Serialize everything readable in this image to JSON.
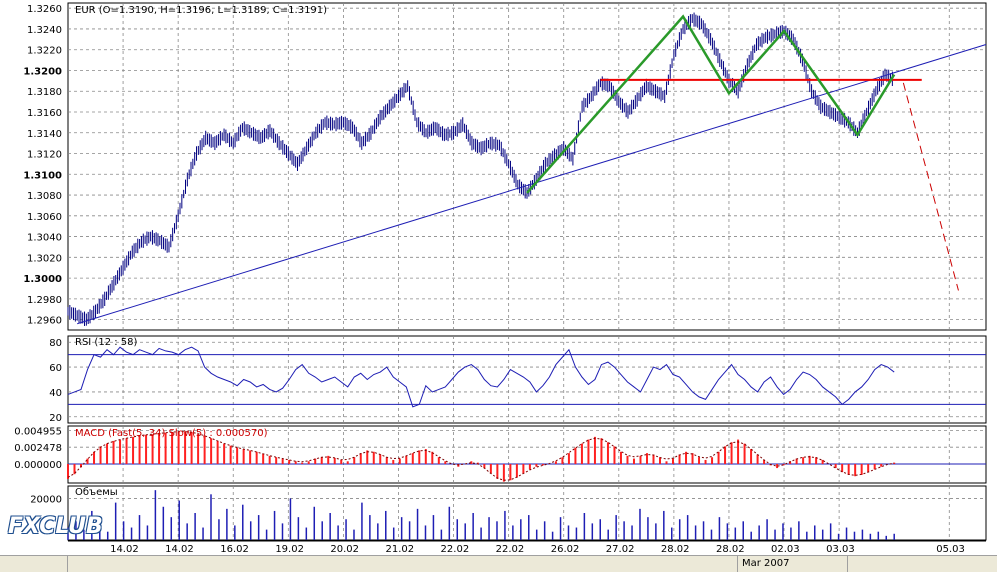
{
  "chart_data": {
    "type": "candlestick",
    "title": "EUR (O=1.3190, H=1.3196, L=1.3189, C=1.3191)",
    "price_axis": {
      "ticks": [
        "1.3260",
        "1.3240",
        "1.3220",
        "1.3200",
        "1.3180",
        "1.3160",
        "1.3140",
        "1.3120",
        "1.3100",
        "1.3080",
        "1.3060",
        "1.3040",
        "1.3020",
        "1.3000",
        "1.2980",
        "1.2960"
      ],
      "bold_ticks": [
        "1.3200",
        "1.3100",
        "1.3000"
      ],
      "ylim": [
        1.295,
        1.3265
      ]
    },
    "x_axis": {
      "ticks": [
        "14.02",
        "14.02",
        "16.02",
        "19.02",
        "20.02",
        "21.02",
        "22.02",
        "22.02",
        "26.02",
        "27.02",
        "28.02",
        "28.02",
        "02.03",
        "03.03",
        "05.03"
      ],
      "range": [
        0,
        100
      ]
    },
    "price_path": [
      [
        0,
        1.2968
      ],
      [
        1,
        1.2964
      ],
      [
        2,
        1.296
      ],
      [
        3,
        1.2968
      ],
      [
        4,
        1.298
      ],
      [
        5,
        1.2995
      ],
      [
        6,
        1.301
      ],
      [
        7,
        1.3025
      ],
      [
        8,
        1.3035
      ],
      [
        9,
        1.304
      ],
      [
        10,
        1.3036
      ],
      [
        11,
        1.303
      ],
      [
        12,
        1.306
      ],
      [
        13,
        1.3095
      ],
      [
        14,
        1.312
      ],
      [
        15,
        1.3135
      ],
      [
        16,
        1.313
      ],
      [
        17,
        1.3138
      ],
      [
        18,
        1.313
      ],
      [
        19,
        1.3145
      ],
      [
        20,
        1.314
      ],
      [
        21,
        1.3135
      ],
      [
        22,
        1.3142
      ],
      [
        23,
        1.313
      ],
      [
        24,
        1.312
      ],
      [
        25,
        1.311
      ],
      [
        26,
        1.3125
      ],
      [
        27,
        1.314
      ],
      [
        28,
        1.315
      ],
      [
        29,
        1.3148
      ],
      [
        30,
        1.315
      ],
      [
        31,
        1.3145
      ],
      [
        32,
        1.313
      ],
      [
        33,
        1.314
      ],
      [
        34,
        1.3155
      ],
      [
        35,
        1.3165
      ],
      [
        36,
        1.3175
      ],
      [
        37,
        1.3185
      ],
      [
        38,
        1.315
      ],
      [
        39,
        1.314
      ],
      [
        40,
        1.3145
      ],
      [
        41,
        1.3138
      ],
      [
        42,
        1.314
      ],
      [
        43,
        1.3148
      ],
      [
        44,
        1.313
      ],
      [
        45,
        1.3125
      ],
      [
        46,
        1.313
      ],
      [
        47,
        1.3128
      ],
      [
        48,
        1.311
      ],
      [
        49,
        1.309
      ],
      [
        50,
        1.3082
      ],
      [
        51,
        1.3095
      ],
      [
        52,
        1.311
      ],
      [
        53,
        1.3118
      ],
      [
        54,
        1.3125
      ],
      [
        55,
        1.3115
      ],
      [
        56,
        1.3165
      ],
      [
        57,
        1.3175
      ],
      [
        58,
        1.3188
      ],
      [
        59,
        1.3185
      ],
      [
        60,
        1.317
      ],
      [
        61,
        1.316
      ],
      [
        62,
        1.3172
      ],
      [
        63,
        1.3185
      ],
      [
        64,
        1.318
      ],
      [
        65,
        1.3175
      ],
      [
        66,
        1.3215
      ],
      [
        67,
        1.324
      ],
      [
        68,
        1.325
      ],
      [
        69,
        1.3245
      ],
      [
        70,
        1.323
      ],
      [
        71,
        1.321
      ],
      [
        72,
        1.319
      ],
      [
        73,
        1.318
      ],
      [
        74,
        1.3205
      ],
      [
        75,
        1.3225
      ],
      [
        76,
        1.3232
      ],
      [
        77,
        1.3235
      ],
      [
        78,
        1.3238
      ],
      [
        79,
        1.323
      ],
      [
        80,
        1.321
      ],
      [
        81,
        1.318
      ],
      [
        82,
        1.3165
      ],
      [
        83,
        1.316
      ],
      [
        84,
        1.3155
      ],
      [
        85,
        1.315
      ],
      [
        86,
        1.314
      ],
      [
        87,
        1.316
      ],
      [
        88,
        1.318
      ],
      [
        89,
        1.3196
      ],
      [
        90,
        1.3191
      ]
    ],
    "trendline": {
      "from": [
        1,
        1.2956
      ],
      "to": [
        100,
        1.3225
      ]
    },
    "resistance_line": {
      "from": [
        58,
        1.3191
      ],
      "to": [
        93,
        1.3191
      ],
      "color": "#ee0000"
    },
    "pattern_zigzag": [
      [
        50,
        1.3082
      ],
      [
        67,
        1.3252
      ],
      [
        72,
        1.3178
      ],
      [
        78,
        1.3238
      ],
      [
        86,
        1.3138
      ],
      [
        90,
        1.3196
      ]
    ],
    "projection": {
      "from": [
        91,
        1.3188
      ],
      "to": [
        97,
        1.2988
      ],
      "color": "#cc0000"
    },
    "rsi": {
      "title": "RSI (12 : 58)",
      "ticks": [
        "80",
        "60",
        "40",
        "20"
      ],
      "ylim": [
        15,
        85
      ],
      "levels": [
        70,
        30
      ],
      "values": [
        38,
        40,
        42,
        58,
        70,
        68,
        74,
        70,
        76,
        72,
        70,
        74,
        72,
        70,
        75,
        73,
        72,
        70,
        74,
        76,
        73,
        60,
        55,
        52,
        50,
        48,
        45,
        50,
        48,
        44,
        46,
        42,
        40,
        43,
        50,
        58,
        62,
        55,
        52,
        48,
        50,
        52,
        48,
        44,
        52,
        55,
        50,
        54,
        56,
        60,
        52,
        48,
        44,
        28,
        30,
        45,
        40,
        42,
        44,
        50,
        56,
        60,
        62,
        58,
        50,
        45,
        44,
        50,
        58,
        55,
        52,
        48,
        40,
        45,
        52,
        62,
        68,
        74,
        60,
        52,
        46,
        50,
        62,
        64,
        60,
        54,
        48,
        44,
        40,
        50,
        60,
        58,
        62,
        54,
        52,
        46,
        40,
        36,
        34,
        42,
        50,
        56,
        62,
        54,
        50,
        44,
        40,
        48,
        52,
        44,
        38,
        42,
        50,
        56,
        54,
        50,
        44,
        40,
        36,
        30,
        34,
        40,
        44,
        50,
        58,
        62,
        60,
        56
      ]
    },
    "macd": {
      "title": "MACD (Fast(5, 34) Slow(5) : 0.000570)",
      "ticks": [
        "0.004955",
        "0.002478",
        "0.000000"
      ],
      "ylim": [
        -0.0028,
        0.0056
      ],
      "values": [
        -0.0022,
        -0.0015,
        -0.0005,
        0.0008,
        0.0018,
        0.0026,
        0.003,
        0.0034,
        0.0036,
        0.0038,
        0.004,
        0.0042,
        0.0043,
        0.0044,
        0.0045,
        0.0046,
        0.0047,
        0.0048,
        0.0048,
        0.0047,
        0.0045,
        0.0042,
        0.0038,
        0.0034,
        0.003,
        0.0027,
        0.0024,
        0.0022,
        0.002,
        0.0018,
        0.0015,
        0.0012,
        0.001,
        0.0008,
        0.0006,
        0.0004,
        0.0002,
        0.0004,
        0.0008,
        0.001,
        0.0012,
        0.0009,
        0.0006,
        0.0004,
        0.001,
        0.0016,
        0.002,
        0.0018,
        0.0014,
        0.001,
        0.0006,
        0.0008,
        0.0012,
        0.0016,
        0.002,
        0.0022,
        0.0018,
        0.001,
        0.0004,
        0.0,
        -0.0004,
        0.0,
        0.0004,
        0.0002,
        -0.0006,
        -0.0014,
        -0.0022,
        -0.0026,
        -0.0024,
        -0.002,
        -0.0014,
        -0.0008,
        -0.0004,
        -0.0002,
        0.0,
        0.0004,
        0.001,
        0.0016,
        0.0024,
        0.003,
        0.0036,
        0.004,
        0.0038,
        0.0032,
        0.0026,
        0.0018,
        0.0012,
        0.0008,
        0.0012,
        0.0016,
        0.0014,
        0.001,
        0.0004,
        0.0008,
        0.0014,
        0.0018,
        0.0016,
        0.001,
        0.0006,
        0.001,
        0.0018,
        0.0026,
        0.0032,
        0.0036,
        0.003,
        0.0022,
        0.0014,
        0.0006,
        -0.0002,
        -0.0006,
        -0.0002,
        0.0004,
        0.0008,
        0.001,
        0.0012,
        0.001,
        0.0006,
        0.0,
        -0.0006,
        -0.0012,
        -0.0016,
        -0.0018,
        -0.0016,
        -0.0012,
        -0.0008,
        -0.0004,
        0.0,
        0.0002
      ]
    },
    "volume": {
      "title": "Объемы",
      "ticks": [
        "20000"
      ],
      "ylim": [
        0,
        26000
      ],
      "values": [
        6000,
        9000,
        5000,
        14000,
        8000,
        4000,
        18000,
        9000,
        6000,
        12000,
        7000,
        24000,
        16000,
        11000,
        19000,
        8000,
        13000,
        6000,
        22000,
        10000,
        15000,
        7000,
        17000,
        9000,
        12000,
        5000,
        14000,
        8000,
        20000,
        11000,
        6000,
        16000,
        9000,
        13000,
        7000,
        10000,
        5000,
        18000,
        12000,
        8000,
        14000,
        6000,
        11000,
        9000,
        15000,
        7000,
        12000,
        5000,
        16000,
        10000,
        8000,
        13000,
        6000,
        11000,
        9000,
        14000,
        7000,
        10000,
        12000,
        5000,
        9000,
        4000,
        11000,
        7000,
        6000,
        13000,
        8000,
        10000,
        5000,
        12000,
        9000,
        7000,
        15000,
        11000,
        8000,
        14000,
        6000,
        10000,
        12000,
        7000,
        9000,
        5000,
        11000,
        8000,
        6000,
        9000,
        4000,
        7000,
        10000,
        5000,
        8000,
        6000,
        9000,
        4000,
        7000,
        5000,
        8000,
        3000,
        6000,
        4000,
        5000,
        3000,
        4000,
        2000,
        3000
      ]
    }
  },
  "bottom_bar": {
    "cells": [
      "",
      "Mar 2007",
      ""
    ]
  },
  "logo": {
    "text": "FXCLUB"
  },
  "colors": {
    "price": "#000080",
    "trend": "#1e1eb4",
    "zigzag": "#2a9a2a",
    "resistance": "#ee0000",
    "projection": "#cc0000",
    "rsi_line": "#1e1eb4",
    "macd_bar": "#ff2020",
    "macd_signal": "#7a0000",
    "volume": "#1e1eb4",
    "grid": "#888888"
  }
}
